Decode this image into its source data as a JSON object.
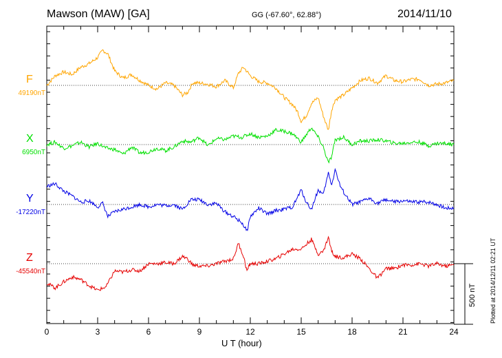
{
  "header": {
    "station": "Mawson (MAW)  [GA]",
    "coords": "GG (-67.60°,  62.88°)",
    "date": "2014/11/10"
  },
  "footer": {
    "plotted": "Plotted at 2014/12/11 02:21  UT",
    "scale_label": "500 nT"
  },
  "chart_data": {
    "type": "line",
    "title": "Mawson (MAW)  [GA]",
    "xlabel": "U T (hour)",
    "ylabel": "",
    "xlim": [
      0,
      24
    ],
    "x_ticks": [
      "0",
      "3",
      "6",
      "9",
      "12",
      "15",
      "18",
      "21",
      "24"
    ],
    "x_minor_step": 1,
    "scale_bar_nT": 500,
    "grid": "dotted baseline per component",
    "y_units": "nT offset from baseline",
    "series": [
      {
        "name": "F",
        "baseline_label": "49190nT",
        "color": "#ffa500",
        "x": [
          0,
          0.5,
          1,
          1.5,
          2,
          2.5,
          3,
          3.3,
          3.6,
          4,
          4.5,
          5,
          5.5,
          6,
          6.5,
          7,
          7.5,
          8,
          8.3,
          8.6,
          9,
          9.5,
          10,
          10.5,
          11,
          11.3,
          11.6,
          12,
          12.5,
          13,
          13.5,
          14,
          14.5,
          14.8,
          15,
          15.3,
          15.6,
          16,
          16.3,
          16.6,
          16.8,
          17,
          17.5,
          18,
          18.5,
          19,
          19.5,
          20,
          20.5,
          21,
          21.5,
          22,
          22.5,
          23,
          23.5,
          24
        ],
        "y": [
          0,
          80,
          110,
          90,
          150,
          180,
          230,
          290,
          260,
          120,
          60,
          90,
          40,
          0,
          -30,
          20,
          0,
          -80,
          -60,
          20,
          20,
          10,
          -10,
          40,
          -20,
          100,
          150,
          80,
          30,
          20,
          -20,
          -100,
          -160,
          -220,
          -300,
          -250,
          -150,
          -100,
          -250,
          -370,
          -200,
          -120,
          -80,
          -20,
          40,
          60,
          20,
          80,
          40,
          30,
          50,
          50,
          0,
          10,
          20,
          40
        ]
      },
      {
        "name": "X",
        "baseline_label": "6950nT",
        "color": "#00e000",
        "x": [
          0,
          0.5,
          1,
          1.5,
          2,
          2.5,
          3,
          3.5,
          4,
          4.5,
          5,
          5.5,
          6,
          6.5,
          7,
          7.5,
          8,
          8.5,
          9,
          9.5,
          10,
          10.5,
          11,
          11.5,
          12,
          12.5,
          13,
          13.5,
          14,
          14.5,
          15,
          15.3,
          15.6,
          16,
          16.3,
          16.6,
          16.8,
          17,
          17.5,
          18,
          18.5,
          19,
          19.5,
          20,
          20.5,
          21,
          21.5,
          22,
          22.5,
          23,
          23.5,
          24
        ],
        "y": [
          0,
          20,
          -30,
          -10,
          20,
          -20,
          10,
          -30,
          -40,
          -80,
          -20,
          -70,
          -60,
          -30,
          -50,
          -20,
          30,
          20,
          60,
          -10,
          50,
          40,
          70,
          60,
          90,
          60,
          70,
          120,
          110,
          90,
          20,
          80,
          140,
          60,
          -20,
          -150,
          -100,
          40,
          60,
          0,
          30,
          30,
          40,
          30,
          10,
          10,
          20,
          20,
          -10,
          10,
          10,
          0
        ]
      },
      {
        "name": "Y",
        "baseline_label": "-17220nT",
        "color": "#0000e6",
        "x": [
          0,
          0.5,
          1,
          1.5,
          2,
          2.5,
          3,
          3.3,
          3.6,
          4,
          4.5,
          5,
          5.5,
          6,
          6.5,
          7,
          7.5,
          8,
          8.5,
          9,
          9.5,
          10,
          10.5,
          11,
          11.5,
          11.8,
          12,
          12.5,
          13,
          13.5,
          14,
          14.5,
          15,
          15.3,
          15.6,
          16,
          16.3,
          16.6,
          16.8,
          17,
          17.3,
          17.6,
          18,
          18.5,
          19,
          19.5,
          20,
          20.5,
          21,
          21.5,
          22,
          22.5,
          23,
          23.5,
          24
        ],
        "y": [
          150,
          170,
          110,
          70,
          20,
          30,
          -20,
          10,
          -100,
          -60,
          -40,
          -20,
          0,
          -20,
          0,
          -10,
          0,
          -40,
          40,
          40,
          0,
          10,
          -60,
          -100,
          -150,
          -220,
          -100,
          -30,
          -80,
          -50,
          -40,
          -20,
          120,
          20,
          -40,
          120,
          80,
          260,
          160,
          290,
          150,
          80,
          0,
          20,
          50,
          10,
          40,
          20,
          30,
          20,
          20,
          20,
          0,
          -30,
          -30
        ]
      },
      {
        "name": "Z",
        "baseline_label": "-45540nT",
        "color": "#e60000",
        "x": [
          0,
          0.5,
          1,
          1.5,
          2,
          2.5,
          3,
          3.5,
          4,
          4.5,
          5,
          5.5,
          6,
          6.5,
          7,
          7.5,
          8,
          8.3,
          8.6,
          9,
          9.5,
          10,
          10.5,
          11,
          11.3,
          11.6,
          11.8,
          12,
          12.5,
          13,
          13.5,
          14,
          14.5,
          15,
          15.3,
          15.6,
          16,
          16.3,
          16.6,
          16.8,
          17,
          17.5,
          18,
          18.5,
          19,
          19.5,
          20,
          20.5,
          21,
          21.5,
          22,
          22.5,
          23,
          23.5,
          24
        ],
        "y": [
          -160,
          -200,
          -150,
          -110,
          -130,
          -180,
          -220,
          -190,
          -60,
          -70,
          -50,
          -60,
          0,
          0,
          10,
          0,
          60,
          40,
          -10,
          -20,
          -20,
          0,
          20,
          40,
          170,
          60,
          -60,
          0,
          0,
          20,
          40,
          80,
          120,
          120,
          160,
          200,
          80,
          100,
          220,
          100,
          60,
          50,
          80,
          40,
          -40,
          -120,
          -40,
          -40,
          -10,
          -10,
          0,
          -20,
          0,
          -20,
          -10
        ]
      }
    ]
  }
}
